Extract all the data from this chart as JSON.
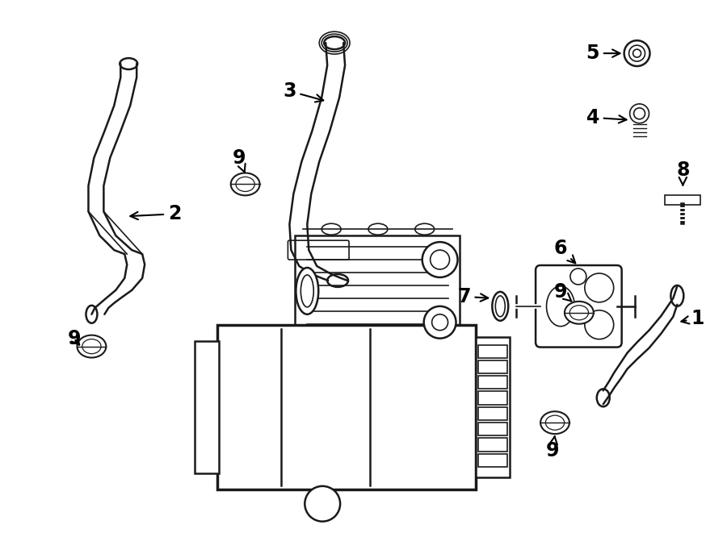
{
  "background_color": "#ffffff",
  "line_color": "#1a1a1a",
  "text_color": "#000000",
  "fig_width": 9.0,
  "fig_height": 6.61,
  "dpi": 100
}
